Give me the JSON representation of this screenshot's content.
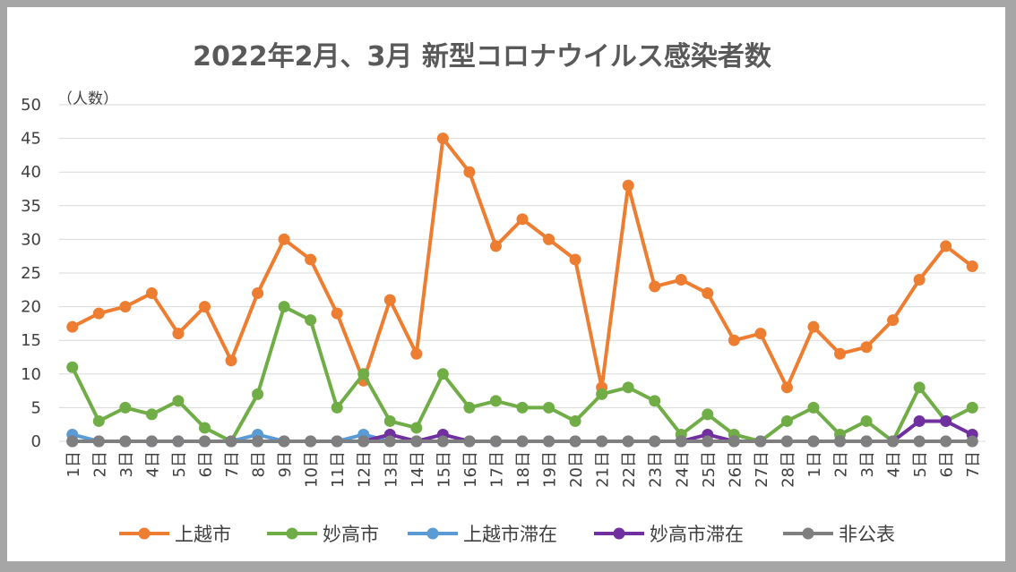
{
  "chart_data": {
    "type": "line",
    "title": "2022年2月、3月 新型コロナウイルス感染者数",
    "ylabel": "（人数）",
    "ylim": [
      0,
      50
    ],
    "yticks": [
      0,
      5,
      10,
      15,
      20,
      25,
      30,
      35,
      40,
      45,
      50
    ],
    "grid": true,
    "legend_position": "bottom",
    "categories": [
      "1日",
      "2日",
      "3日",
      "4日",
      "5日",
      "6日",
      "7日",
      "8日",
      "9日",
      "10日",
      "11日",
      "12日",
      "13日",
      "14日",
      "15日",
      "16日",
      "17日",
      "18日",
      "19日",
      "20日",
      "21日",
      "22日",
      "23日",
      "24日",
      "25日",
      "26日",
      "27日",
      "28日",
      "1日",
      "2日",
      "3日",
      "4日",
      "5日",
      "6日",
      "7日"
    ],
    "series": [
      {
        "name": "上越市",
        "color": "#ed7d31",
        "values": [
          17,
          19,
          20,
          22,
          16,
          20,
          12,
          22,
          30,
          27,
          19,
          9,
          21,
          13,
          45,
          40,
          29,
          33,
          30,
          27,
          8,
          38,
          23,
          24,
          22,
          15,
          16,
          8,
          17,
          13,
          14,
          18,
          24,
          29,
          26
        ]
      },
      {
        "name": "妙高市",
        "color": "#70ad47",
        "values": [
          11,
          3,
          5,
          4,
          6,
          2,
          0,
          7,
          20,
          18,
          5,
          10,
          3,
          2,
          10,
          5,
          6,
          5,
          5,
          3,
          7,
          8,
          6,
          1,
          4,
          1,
          0,
          3,
          5,
          1,
          3,
          0,
          8,
          3,
          5
        ]
      },
      {
        "name": "上越市滞在",
        "color": "#5b9bd5",
        "values": [
          1,
          0,
          0,
          0,
          0,
          0,
          0,
          1,
          0,
          0,
          0,
          1,
          0,
          0,
          0,
          0,
          0,
          0,
          0,
          0,
          0,
          0,
          0,
          0,
          0,
          0,
          0,
          0,
          0,
          0,
          0,
          0,
          0,
          0,
          0
        ]
      },
      {
        "name": "妙高市滞在",
        "color": "#7030a0",
        "values": [
          0,
          0,
          0,
          0,
          0,
          0,
          0,
          0,
          0,
          0,
          0,
          0,
          1,
          0,
          1,
          0,
          0,
          0,
          0,
          0,
          0,
          0,
          0,
          0,
          1,
          0,
          0,
          0,
          0,
          0,
          0,
          0,
          3,
          3,
          1
        ]
      },
      {
        "name": "非公表",
        "color": "#7f7f7f",
        "values": [
          0,
          0,
          0,
          0,
          0,
          0,
          0,
          0,
          0,
          0,
          0,
          0,
          0,
          0,
          0,
          0,
          0,
          0,
          0,
          0,
          0,
          0,
          0,
          0,
          0,
          0,
          0,
          0,
          0,
          0,
          0,
          0,
          0,
          0,
          0
        ]
      }
    ]
  }
}
